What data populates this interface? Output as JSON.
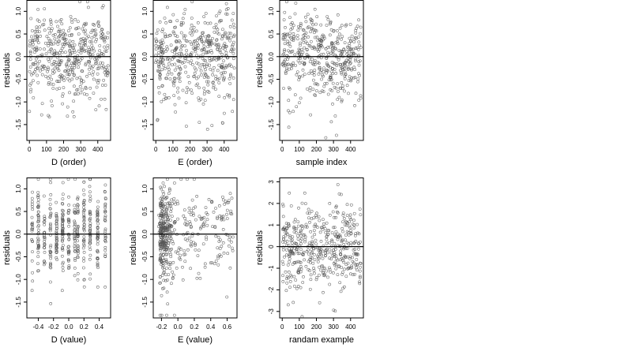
{
  "chart_data": [
    {
      "type": "scatter",
      "xlabel": "D (order)",
      "ylabel": "residuals",
      "xlim": [
        -15,
        475
      ],
      "ylim": [
        -1.85,
        1.25
      ],
      "xticks": [
        0,
        100,
        200,
        300,
        400
      ],
      "xtick_labels": [
        "0",
        "100",
        "200",
        "300",
        "400"
      ],
      "yticks": [
        -1.5,
        -1.0,
        -0.5,
        0.0,
        0.5,
        1.0
      ],
      "ytick_labels": [
        "-1.5",
        "-1.0",
        "-0.5",
        "0.0",
        "0.5",
        "1.0"
      ],
      "hline": 0,
      "n_points": 460,
      "pattern": "order",
      "seed": 11
    },
    {
      "type": "scatter",
      "xlabel": "E (order)",
      "ylabel": "residuals",
      "xlim": [
        -15,
        475
      ],
      "ylim": [
        -1.85,
        1.25
      ],
      "xticks": [
        0,
        100,
        200,
        300,
        400
      ],
      "xtick_labels": [
        "0",
        "100",
        "200",
        "300",
        "400"
      ],
      "yticks": [
        -1.5,
        -1.0,
        -0.5,
        0.0,
        0.5,
        1.0
      ],
      "ytick_labels": [
        "-1.5",
        "-1.0",
        "-0.5",
        "0.0",
        "0.5",
        "1.0"
      ],
      "hline": 0,
      "n_points": 460,
      "pattern": "order",
      "seed": 23
    },
    {
      "type": "scatter",
      "xlabel": "sample index",
      "ylabel": "residuals",
      "xlim": [
        -15,
        475
      ],
      "ylim": [
        -1.85,
        1.25
      ],
      "xticks": [
        0,
        100,
        200,
        300,
        400
      ],
      "xtick_labels": [
        "0",
        "100",
        "200",
        "300",
        "400"
      ],
      "yticks": [
        -1.5,
        -1.0,
        -0.5,
        0.0,
        0.5,
        1.0
      ],
      "ytick_labels": [
        "-1.5",
        "-1.0",
        "-0.5",
        "0.0",
        "0.5",
        "1.0"
      ],
      "hline": 0,
      "n_points": 460,
      "pattern": "wave",
      "seed": 37
    },
    {
      "type": "scatter",
      "xlabel": "D (value)",
      "ylabel": "residuals",
      "xlim": [
        -0.55,
        0.55
      ],
      "ylim": [
        -1.85,
        1.25
      ],
      "xticks": [
        -0.4,
        -0.2,
        0.0,
        0.2,
        0.4
      ],
      "xtick_labels": [
        "-0.4",
        "-0.2",
        "0.0",
        "0.2",
        "0.4"
      ],
      "yticks": [
        -1.5,
        -1.0,
        -0.5,
        0.0,
        0.5,
        1.0
      ],
      "ytick_labels": [
        "-1.5",
        "-1.0",
        "-0.5",
        "0.0",
        "0.5",
        "1.0"
      ],
      "hline": 0,
      "n_points": 460,
      "pattern": "discrete",
      "levels": [
        -0.48,
        -0.4,
        -0.32,
        -0.24,
        -0.16,
        -0.08,
        0.0,
        0.08,
        0.12,
        0.2,
        0.28,
        0.38,
        0.48
      ],
      "seed": 51
    },
    {
      "type": "scatter",
      "xlabel": "E (value)",
      "ylabel": "residuals",
      "xlim": [
        -0.3,
        0.72
      ],
      "ylim": [
        -1.85,
        1.25
      ],
      "xticks": [
        -0.2,
        0.0,
        0.2,
        0.4,
        0.6
      ],
      "xtick_labels": [
        "-0.2",
        "0.0",
        "0.2",
        "0.4",
        "0.6"
      ],
      "yticks": [
        -1.5,
        -1.0,
        -0.5,
        0.0,
        0.5,
        1.0
      ],
      "ytick_labels": [
        "-1.5",
        "-1.0",
        "-0.5",
        "0.0",
        "0.5",
        "1.0"
      ],
      "hline": 0,
      "n_points": 460,
      "pattern": "skewed",
      "seed": 67
    },
    {
      "type": "scatter",
      "xlabel": "randam example",
      "ylabel": "residuals",
      "xlim": [
        -15,
        475
      ],
      "ylim": [
        -3.3,
        3.2
      ],
      "xticks": [
        0,
        100,
        200,
        300,
        400
      ],
      "xtick_labels": [
        "0",
        "100",
        "200",
        "300",
        "400"
      ],
      "yticks": [
        -3,
        -2,
        -1,
        0,
        1,
        2,
        3
      ],
      "ytick_labels": [
        "-3",
        "-2",
        "-1",
        "0",
        "1",
        "2",
        "3"
      ],
      "hline": 0,
      "n_points": 460,
      "pattern": "normal",
      "seed": 83
    }
  ]
}
